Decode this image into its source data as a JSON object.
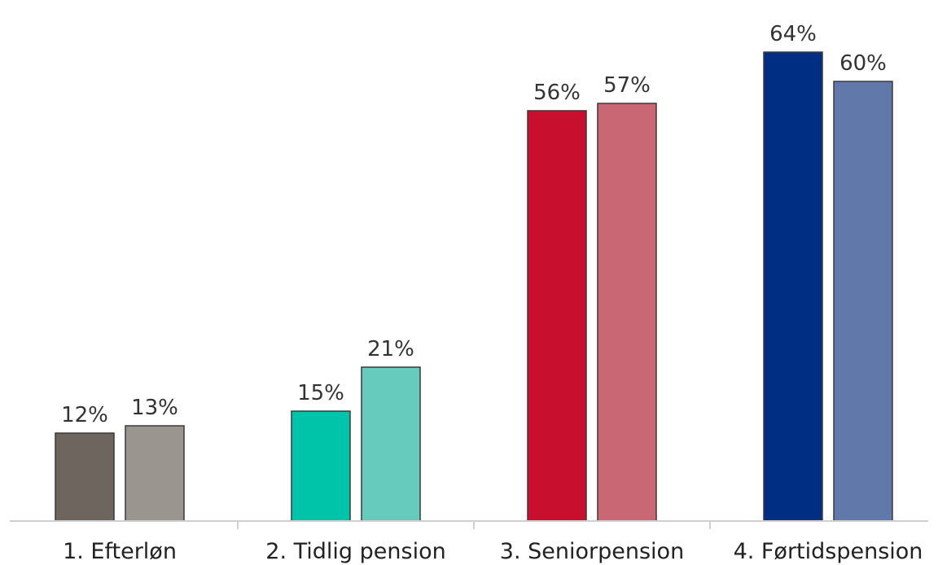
{
  "chart_data": {
    "type": "bar",
    "title": "",
    "xlabel": "",
    "ylabel": "",
    "ylim": [
      0,
      70
    ],
    "grid": false,
    "legend": "none",
    "categories": [
      "1. Efterløn",
      "2. Tidlig pension",
      "3. Seniorpension",
      "4. Førtidspension"
    ],
    "series": [
      {
        "values": [
          12,
          15,
          56,
          64
        ],
        "labels": [
          "12%",
          "15%",
          "56%",
          "64%"
        ],
        "colors": [
          "#6e665e",
          "#00c4aa",
          "#c8102e",
          "#002e82"
        ]
      },
      {
        "values": [
          13,
          21,
          57,
          60
        ],
        "labels": [
          "13%",
          "21%",
          "57%",
          "60%"
        ],
        "colors": [
          "#9a958f",
          "#66cbbd",
          "#c96874",
          "#6079aa"
        ]
      }
    ]
  }
}
